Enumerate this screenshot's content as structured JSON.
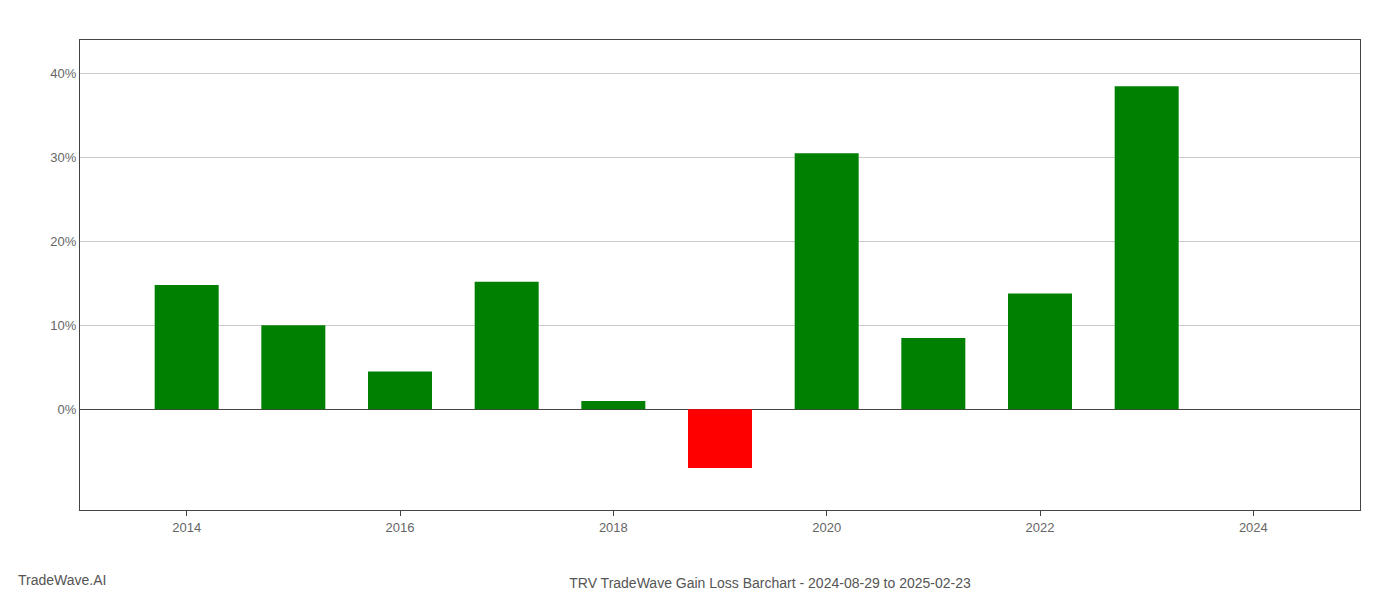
{
  "chart_data": {
    "type": "bar",
    "title": "TRV TradeWave Gain Loss Barchart - 2024-08-29 to 2025-02-23",
    "annotations": [
      "TradeWave.AI"
    ],
    "x": [
      2014,
      2015,
      2016,
      2017,
      2018,
      2019,
      2020,
      2021,
      2022,
      2023
    ],
    "values": [
      0.148,
      0.1,
      0.045,
      0.152,
      0.01,
      -0.07,
      0.305,
      0.085,
      0.138,
      0.385
    ],
    "colors": [
      "#008000",
      "#008000",
      "#008000",
      "#008000",
      "#008000",
      "#ff0000",
      "#008000",
      "#008000",
      "#008000",
      "#008000"
    ],
    "xlim": [
      2013.0,
      2025.0
    ],
    "xticks": [
      2014,
      2016,
      2018,
      2020,
      2022,
      2024
    ],
    "ylim": [
      -0.12,
      0.44
    ],
    "yticks": [
      {
        "value": 0.0,
        "label": "0%"
      },
      {
        "value": 0.1,
        "label": "10%"
      },
      {
        "value": 0.2,
        "label": "20%"
      },
      {
        "value": 0.3,
        "label": "30%"
      },
      {
        "value": 0.4,
        "label": "40%"
      }
    ],
    "grid": "y"
  }
}
